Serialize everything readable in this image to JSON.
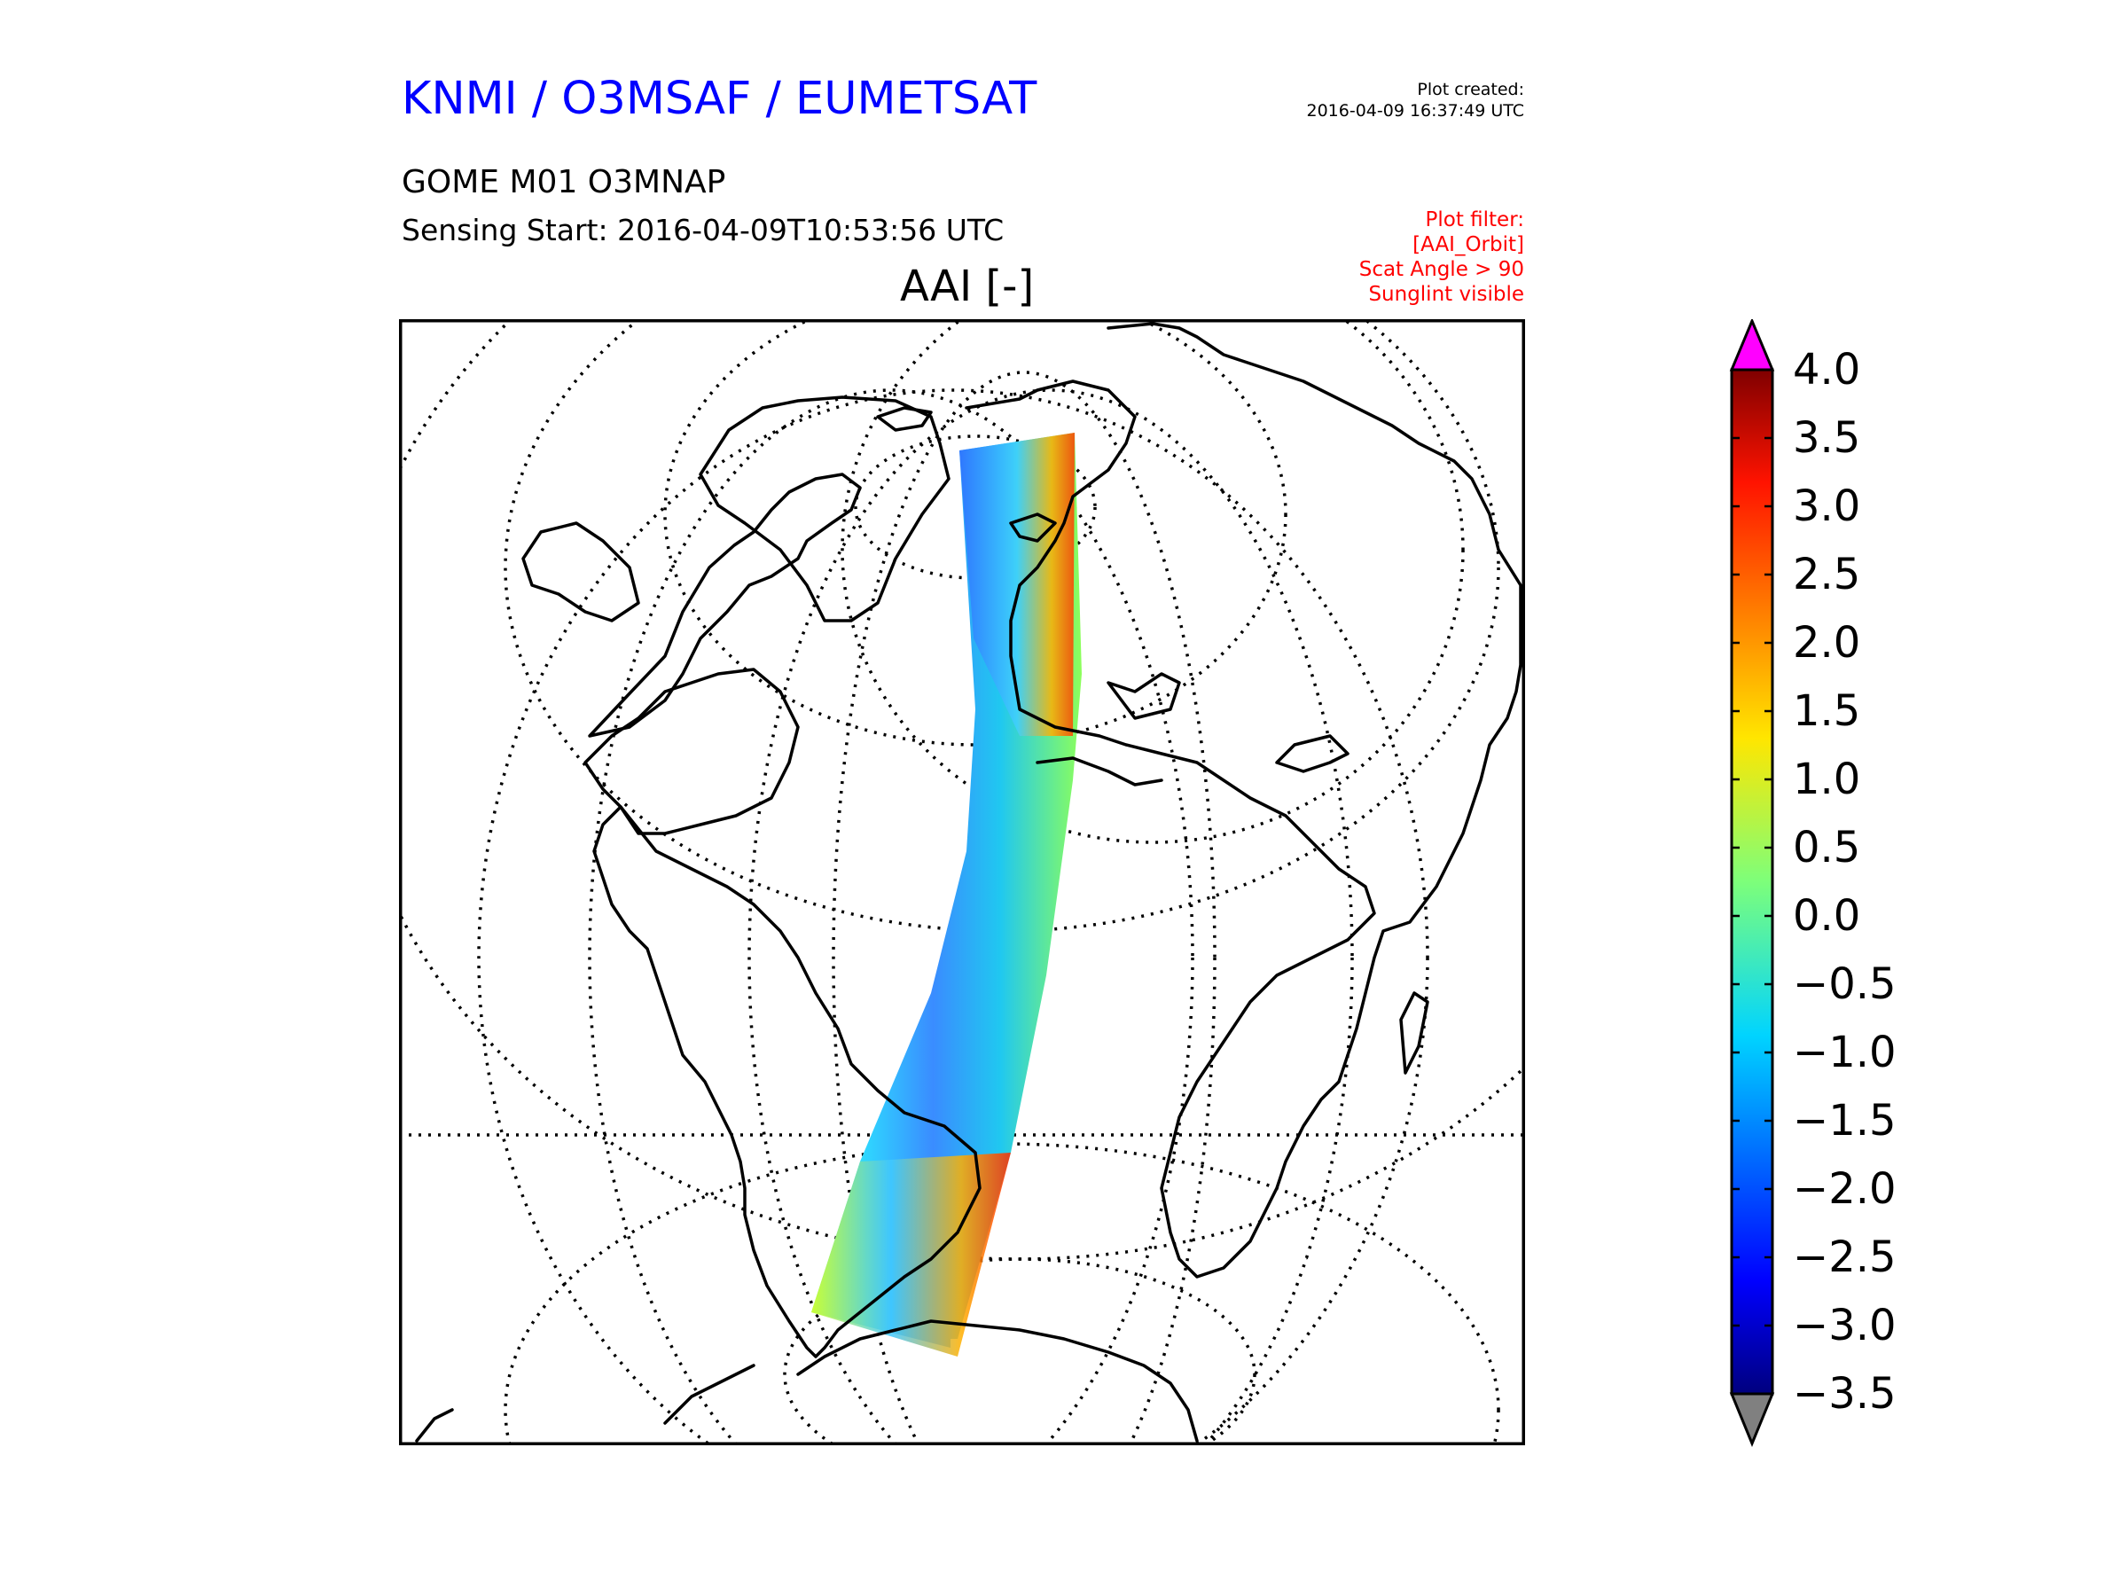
{
  "header": {
    "agency": "KNMI / O3MSAF / EUMETSAT",
    "created_label": "Plot created:",
    "created_value": "2016-04-09 16:37:49 UTC",
    "product": "GOME M01 O3MNAP",
    "sensing": "Sensing Start: 2016-04-09T10:53:56 UTC",
    "map_title": "AAI [-]",
    "filter_lines": [
      "Plot filter:",
      "[AAI_Orbit]",
      "Scat Angle > 90",
      "Sunglint visible"
    ]
  },
  "colorbar": {
    "ticks": [
      "4.0",
      "3.5",
      "3.0",
      "2.5",
      "2.0",
      "1.5",
      "1.0",
      "0.5",
      "0.0",
      "−0.5",
      "−1.0",
      "−1.5",
      "−2.0",
      "−2.5",
      "−3.0",
      "−3.5"
    ],
    "min": -3.5,
    "max": 4.0,
    "extend_max_color": "#ff00ff",
    "extend_min_color": "#808080",
    "colormap": "jet"
  },
  "colors": {
    "agency": "#0000ff",
    "filter": "#ff0000"
  }
}
